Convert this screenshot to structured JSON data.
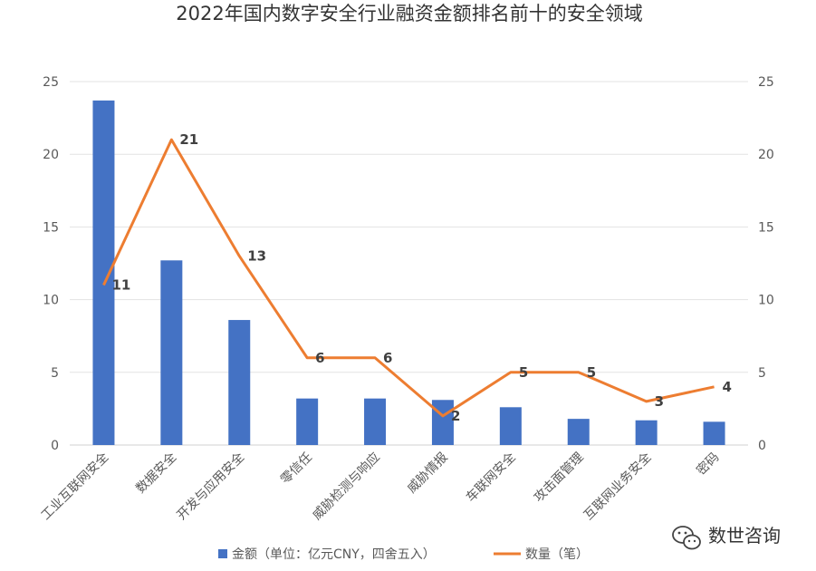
{
  "chart_data": {
    "type": "bar",
    "title": "2022年国内数字安全行业融资金额排名前十的安全领域",
    "categories": [
      "工业互联网安全",
      "数据安全",
      "开发与应用安全",
      "零信任",
      "威胁检测与响应",
      "威胁情报",
      "车联网安全",
      "攻击面管理",
      "互联网业务安全",
      "密码"
    ],
    "series": [
      {
        "name": "金额（单位：亿元CNY，四舍五入）",
        "type": "bar",
        "axis": "left",
        "color": "#4472C4",
        "values": [
          23.7,
          12.7,
          8.6,
          3.2,
          3.2,
          3.1,
          2.6,
          1.8,
          1.7,
          1.6
        ]
      },
      {
        "name": "数量（笔）",
        "type": "line",
        "axis": "right",
        "color": "#ED7D31",
        "values": [
          11,
          21,
          13,
          6,
          6,
          2,
          5,
          5,
          3,
          4
        ],
        "labels": [
          "11",
          "21",
          "13",
          "6",
          "6",
          "2",
          "5",
          "5",
          "3",
          "4"
        ]
      }
    ],
    "ylim": [
      0,
      25
    ],
    "y2lim": [
      0,
      25
    ],
    "yticks": [
      "0",
      "5",
      "10",
      "15",
      "20",
      "25"
    ],
    "grid": true,
    "legend": "bottom"
  },
  "watermark": {
    "text": "数世咨询",
    "icon": "wechat-icon"
  }
}
